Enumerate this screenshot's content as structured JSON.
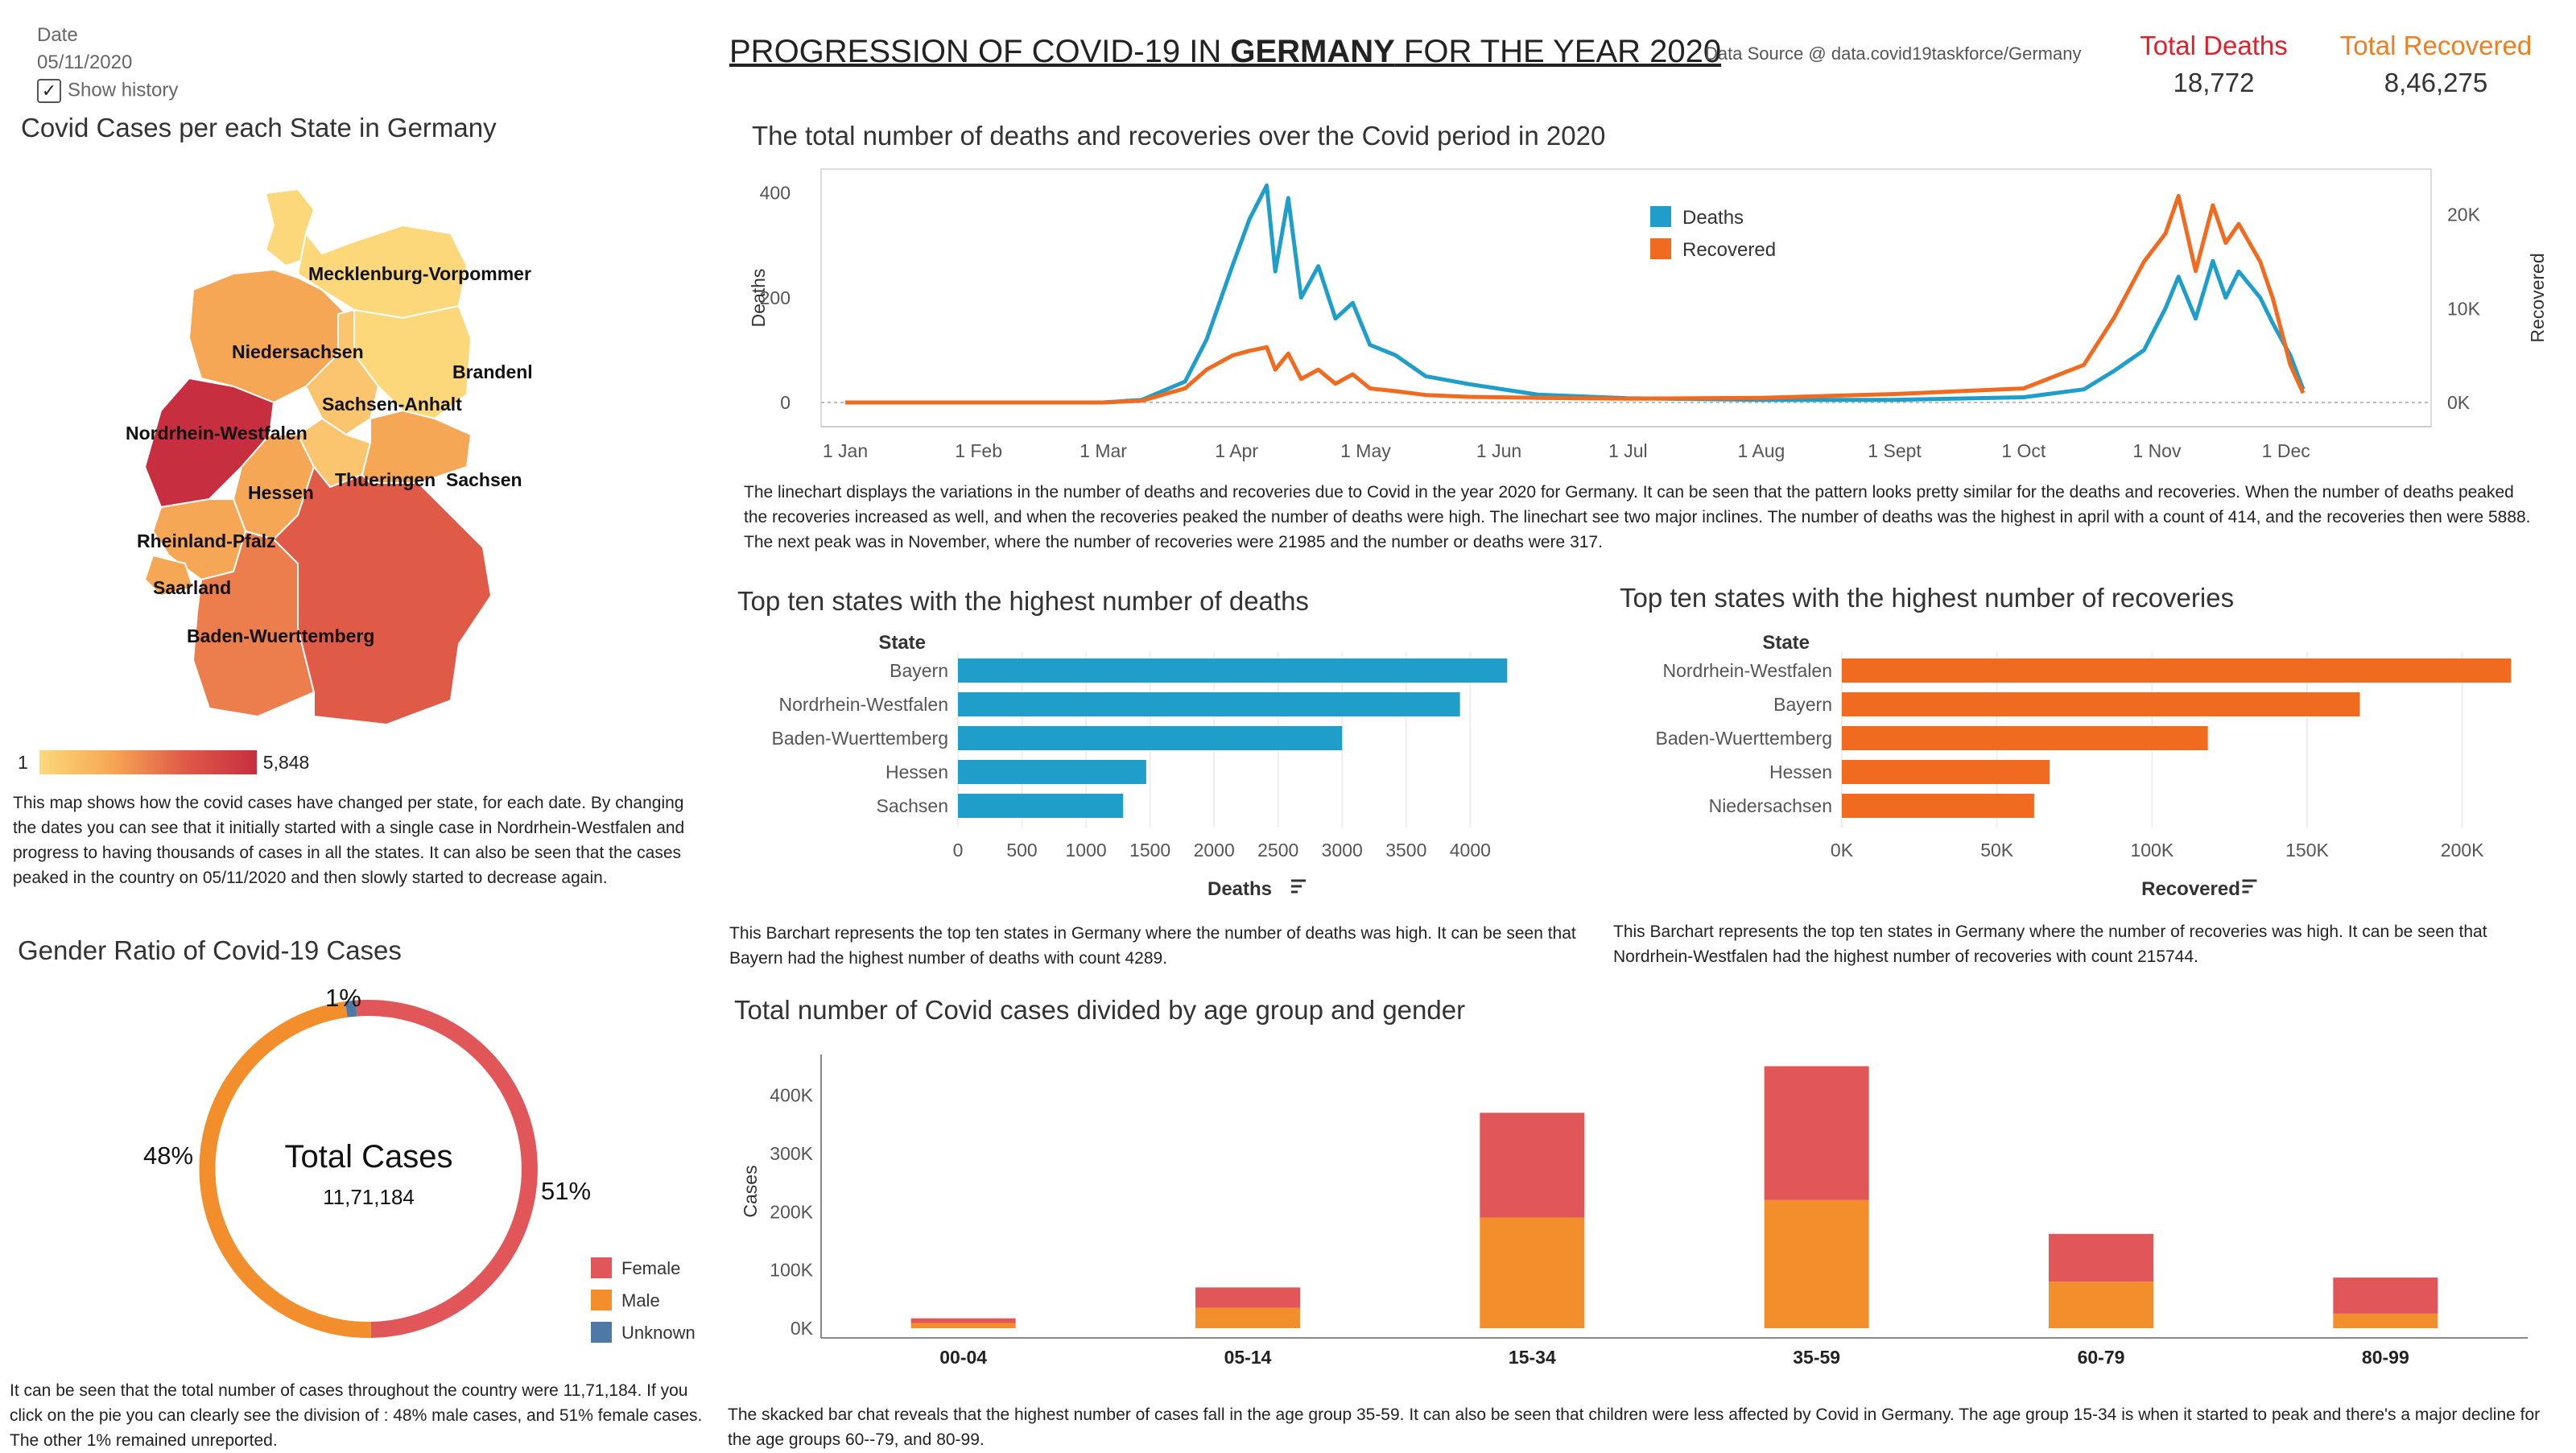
{
  "filter": {
    "label": "Date",
    "value": "05/11/2020",
    "history_label": "Show history"
  },
  "header": {
    "title_pre": "PROGRESSION OF COVID-19 IN ",
    "title_bold": "GERMANY",
    "title_post": " FOR THE YEAR 2020",
    "source": "Data Source @ data.covid19taskforce/Germany",
    "deaths_label": "Total Deaths",
    "deaths_value": "18,772",
    "recovered_label": "Total Recovered",
    "recovered_value": "8,46,275",
    "deaths_color": "#e0202a",
    "recovered_color": "#f07d1f"
  },
  "map": {
    "title": "Covid Cases per each State in Germany",
    "legend_min": "1",
    "legend_max": "5,848",
    "states": [
      "Mecklenburg-Vorpommern",
      "Niedersachsen",
      "Brandenburg",
      "Sachsen-Anhalt",
      "Nordrhein-Westfalen",
      "Hessen",
      "Thueringen",
      "Sachsen",
      "Rheinland-Pfalz",
      "Saarland",
      "Baden-Wuerttemberg"
    ],
    "description": "This map shows how the covid cases have changed per state, for each date. By changing the dates you can see that it initially started with a single case in Nordrhein-Westfalen and progress to having thousands of cases in all the states. It can also be seen that the cases peaked in the country on 05/11/2020 and then slowly started to decrease again."
  },
  "line": {
    "title": "The total number of deaths and recoveries over the Covid period in 2020",
    "description": "The linechart displays the variations in the number of deaths and recoveries due to Covid in the year 2020 for Germany. It can be seen that the pattern looks pretty similar for the deaths and recoveries. When the number of deaths peaked the recoveries increased as well, and when the recoveries peaked the number of deaths were high. The linechart see two major inclines. The number of deaths was the highest in april with a count of 414, and the recoveries then were 5888. The next peak was in November, where the number of recoveries were 21985 and the number or deaths were 317."
  },
  "bar_deaths": {
    "title": "Top ten states with the highest number of deaths",
    "description": "This Barchart represents the top ten states in Germany where the number of deaths was high. It can be seen that Bayern had the highest number of deaths with count 4289."
  },
  "bar_recovered": {
    "title": "Top ten states with the highest number of recoveries",
    "description": "This Barchart represents the top ten states in Germany where the number of recoveries was high. It can be seen that Nordrhein-Westfalen had the highest number of recoveries with count 215744."
  },
  "pie": {
    "title": "Gender Ratio of Covid-19 Cases",
    "center_label": "Total Cases",
    "center_value": "11,71,184",
    "description": "It can be seen that the total number of cases throughout the country were 11,71,184. If you click on the pie you can clearly see the division of : 48% male cases, and 51% female cases. The other 1% remained unreported."
  },
  "stack": {
    "title": "Total number of Covid cases divided by age group and gender",
    "description": "The skacked bar chat reveals that the highest number of cases fall in the age group 35-59. It can also be seen that children were less affected by Covid in Germany. The age group 15-34 is when it started to peak and there's a major decline for the age groups 60--79, and 80-99."
  },
  "chart_data": [
    {
      "type": "line",
      "title": "The total number of deaths and recoveries over the Covid period in 2020",
      "ylabel": "Deaths",
      "y2label": "Recovered",
      "ylim": [
        0,
        430
      ],
      "y2lim": [
        0,
        24000
      ],
      "yticks": [
        0,
        200,
        400
      ],
      "y2ticks": [
        "0K",
        "10K",
        "20K"
      ],
      "xticks": [
        "1 Jan",
        "1 Feb",
        "1 Mar",
        "1 Apr",
        "1 May",
        "1 Jun",
        "1 Jul",
        "1 Aug",
        "1 Sept",
        "1 Oct",
        "1 Nov",
        "1 Dec"
      ],
      "legend": "top-center",
      "series": [
        {
          "name": "Deaths",
          "color": "#1f9ec9",
          "axis": "left",
          "x": [
            "2020-01-01",
            "2020-03-01",
            "2020-03-10",
            "2020-03-20",
            "2020-03-25",
            "2020-03-31",
            "2020-04-04",
            "2020-04-08",
            "2020-04-10",
            "2020-04-13",
            "2020-04-16",
            "2020-04-20",
            "2020-04-24",
            "2020-04-28",
            "2020-05-02",
            "2020-05-08",
            "2020-05-15",
            "2020-05-25",
            "2020-06-10",
            "2020-07-01",
            "2020-08-01",
            "2020-09-01",
            "2020-10-01",
            "2020-10-15",
            "2020-10-22",
            "2020-10-29",
            "2020-11-03",
            "2020-11-06",
            "2020-11-10",
            "2020-11-14",
            "2020-11-17",
            "2020-11-20",
            "2020-11-25",
            "2020-11-28",
            "2020-12-02",
            "2020-12-05"
          ],
          "values": [
            0,
            0,
            5,
            40,
            120,
            260,
            350,
            414,
            250,
            390,
            200,
            260,
            160,
            190,
            110,
            90,
            50,
            35,
            15,
            8,
            5,
            5,
            10,
            25,
            60,
            100,
            180,
            240,
            160,
            270,
            200,
            250,
            200,
            150,
            90,
            25
          ]
        },
        {
          "name": "Recovered",
          "color": "#f06a1f",
          "axis": "right",
          "x": [
            "2020-01-01",
            "2020-03-01",
            "2020-03-10",
            "2020-03-20",
            "2020-03-25",
            "2020-03-31",
            "2020-04-04",
            "2020-04-08",
            "2020-04-10",
            "2020-04-13",
            "2020-04-16",
            "2020-04-20",
            "2020-04-24",
            "2020-04-28",
            "2020-05-02",
            "2020-05-08",
            "2020-05-15",
            "2020-05-25",
            "2020-06-10",
            "2020-07-01",
            "2020-08-01",
            "2020-09-01",
            "2020-10-01",
            "2020-10-15",
            "2020-10-22",
            "2020-10-29",
            "2020-11-03",
            "2020-11-06",
            "2020-11-10",
            "2020-11-14",
            "2020-11-17",
            "2020-11-20",
            "2020-11-25",
            "2020-11-28",
            "2020-12-02",
            "2020-12-05"
          ],
          "values": [
            0,
            0,
            200,
            1500,
            3500,
            5000,
            5500,
            5888,
            3500,
            5200,
            2500,
            3500,
            2000,
            3000,
            1500,
            1200,
            800,
            600,
            500,
            400,
            500,
            900,
            1500,
            4000,
            9000,
            15000,
            18000,
            21985,
            14000,
            21000,
            17000,
            19000,
            15000,
            11000,
            4000,
            1000
          ]
        }
      ]
    },
    {
      "type": "bar",
      "orientation": "horizontal",
      "title": "Top ten states with the highest number of deaths",
      "xlabel": "Deaths",
      "ylabel": "State",
      "xlim": [
        0,
        4400
      ],
      "xticks": [
        0,
        500,
        1000,
        1500,
        2000,
        2500,
        3000,
        3500,
        4000
      ],
      "categories": [
        "Bayern",
        "Nordrhein-Westfalen",
        "Baden-Wuerttemberg",
        "Hessen",
        "Sachsen"
      ],
      "values": [
        4289,
        3920,
        3000,
        1470,
        1290
      ],
      "color": "#1f9ec9"
    },
    {
      "type": "bar",
      "orientation": "horizontal",
      "title": "Top ten states with the highest number of recoveries",
      "xlabel": "Recovered",
      "ylabel": "State",
      "xlim": [
        0,
        225000
      ],
      "xticks": [
        "0K",
        "50K",
        "100K",
        "150K",
        "200K"
      ],
      "categories": [
        "Nordrhein-Westfalen",
        "Bayern",
        "Baden-Wuerttemberg",
        "Hessen",
        "Niedersachsen"
      ],
      "values": [
        215744,
        167000,
        118000,
        67000,
        62000
      ],
      "color": "#f06a1f"
    },
    {
      "type": "pie",
      "donut": true,
      "title": "Gender Ratio of Covid-19 Cases",
      "categories": [
        "Female",
        "Male",
        "Unknown"
      ],
      "values": [
        51,
        48,
        1
      ],
      "labels": [
        "51%",
        "48%",
        "1%"
      ],
      "colors": [
        "#e15759",
        "#f28e2b",
        "#4e79a7"
      ],
      "legend": "bottom-right"
    },
    {
      "type": "bar",
      "stacked": true,
      "title": "Total number of Covid cases divided by age group and gender",
      "ylabel": "Cases",
      "ylim": [
        0,
        470000
      ],
      "yticks": [
        "0K",
        "100K",
        "200K",
        "300K",
        "400K"
      ],
      "categories": [
        "00-04",
        "05-14",
        "15-34",
        "35-59",
        "60-79",
        "80-99"
      ],
      "series": [
        {
          "name": "Male",
          "color": "#f28e2b",
          "values": [
            9000,
            35000,
            190000,
            220000,
            80000,
            25000
          ]
        },
        {
          "name": "Female",
          "color": "#e15759",
          "values": [
            8000,
            35000,
            180000,
            230000,
            82000,
            62000
          ]
        }
      ]
    }
  ]
}
